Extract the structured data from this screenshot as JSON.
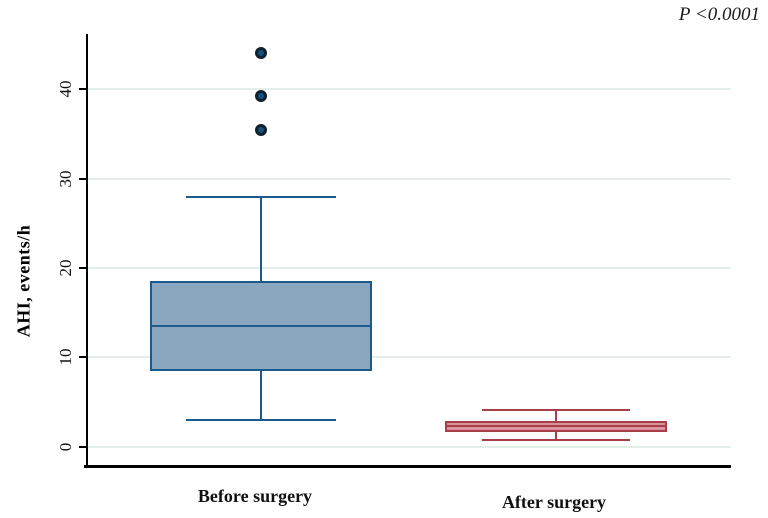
{
  "chart_data": {
    "type": "box",
    "title": "",
    "ylabel": "AHI, events/h",
    "xlabel": "",
    "annotation": "P <0.0001",
    "categories": [
      "Before surgery",
      "After surgery"
    ],
    "yticks": [
      0,
      10,
      20,
      30,
      40
    ],
    "ylim": [
      -2.3,
      46.2
    ],
    "grid": "horizontal",
    "legend": "none",
    "series": [
      {
        "name": "Before surgery",
        "q1": 8.5,
        "median": 13.5,
        "q3": 18.6,
        "whisker_low": 3.0,
        "whisker_high": 28.0,
        "outliers": [
          35.5,
          39.2,
          44.1
        ],
        "fill": "#8ba7c0",
        "stroke": "#1a5a8c",
        "outlier_fill": "#15517c",
        "outlier_stroke": "#0d212f"
      },
      {
        "name": "After surgery",
        "q1": 1.6,
        "median": 2.3,
        "q3": 2.9,
        "whisker_low": 0.7,
        "whisker_high": 4.1,
        "outliers": [],
        "fill": "#db949d",
        "stroke": "#a83e49",
        "outlier_fill": "#a83e49",
        "outlier_stroke": "#7c2730"
      }
    ],
    "colors": {
      "axis": "#000000",
      "grid": "#e5efe9",
      "background": "#ffffff"
    }
  }
}
